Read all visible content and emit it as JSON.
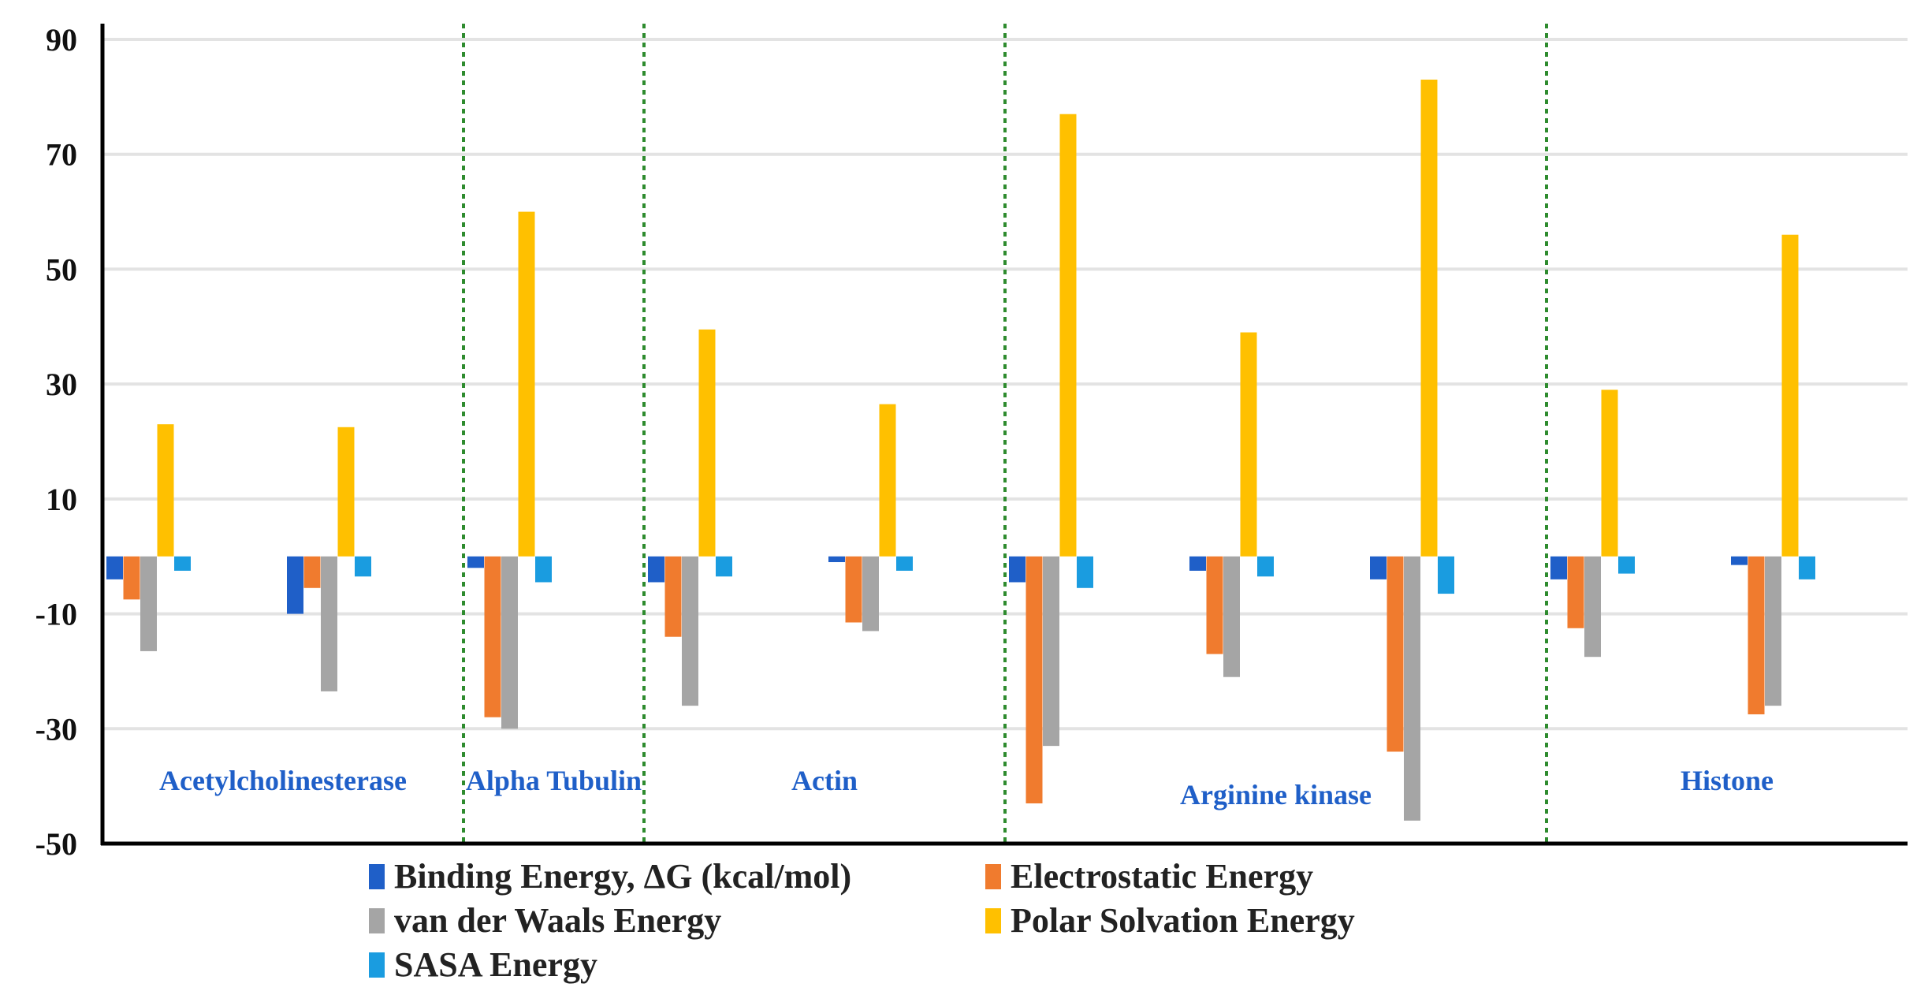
{
  "chart_data": {
    "type": "bar",
    "title": "",
    "xlabel": "",
    "ylabel": "",
    "ylim": [
      -50,
      90
    ],
    "yticks": [
      90,
      70,
      50,
      30,
      10,
      -10,
      -30,
      -50
    ],
    "grid": true,
    "legend_position": "bottom",
    "groups": [
      {
        "label": "Acetylcholinesterase",
        "complexes": 2
      },
      {
        "label": "Alpha Tubulin",
        "complexes": 1
      },
      {
        "label": "Actin",
        "complexes": 2
      },
      {
        "label": "Arginine kinase",
        "complexes": 3
      },
      {
        "label": "Histone",
        "complexes": 2
      }
    ],
    "series": [
      {
        "name": "Binding Energy, ΔG (kcal/mol)",
        "color": "#1f5fc8",
        "values": [
          -4,
          -10,
          -2,
          -4.5,
          -1,
          -4.5,
          -2.5,
          -4,
          -4,
          -1.5
        ]
      },
      {
        "name": "Electrostatic Energy",
        "color": "#f07b2e",
        "values": [
          -7.5,
          -5.5,
          -28,
          -14,
          -11.5,
          -43,
          -17,
          -34,
          -12.5,
          -27.5
        ]
      },
      {
        "name": "van der Waals Energy",
        "color": "#a5a5a5",
        "values": [
          -16.5,
          -23.5,
          -30,
          -26,
          -13,
          -33,
          -21,
          -46,
          -17.5,
          -26
        ]
      },
      {
        "name": "Polar Solvation Energy",
        "color": "#ffc000",
        "values": [
          23,
          22.5,
          60,
          39.5,
          26.5,
          77,
          39,
          83,
          29,
          56
        ]
      },
      {
        "name": "SASA Energy",
        "color": "#1a9ce0",
        "values": [
          -2.5,
          -3.5,
          -4.5,
          -3.5,
          -2.5,
          -5.5,
          -3.5,
          -6.5,
          -3,
          -4
        ]
      }
    ],
    "colors": {
      "axis": "#000000",
      "grid": "#e3e3e3",
      "divider": "#2e8b2e",
      "group_label": "#1f5fc8"
    }
  }
}
